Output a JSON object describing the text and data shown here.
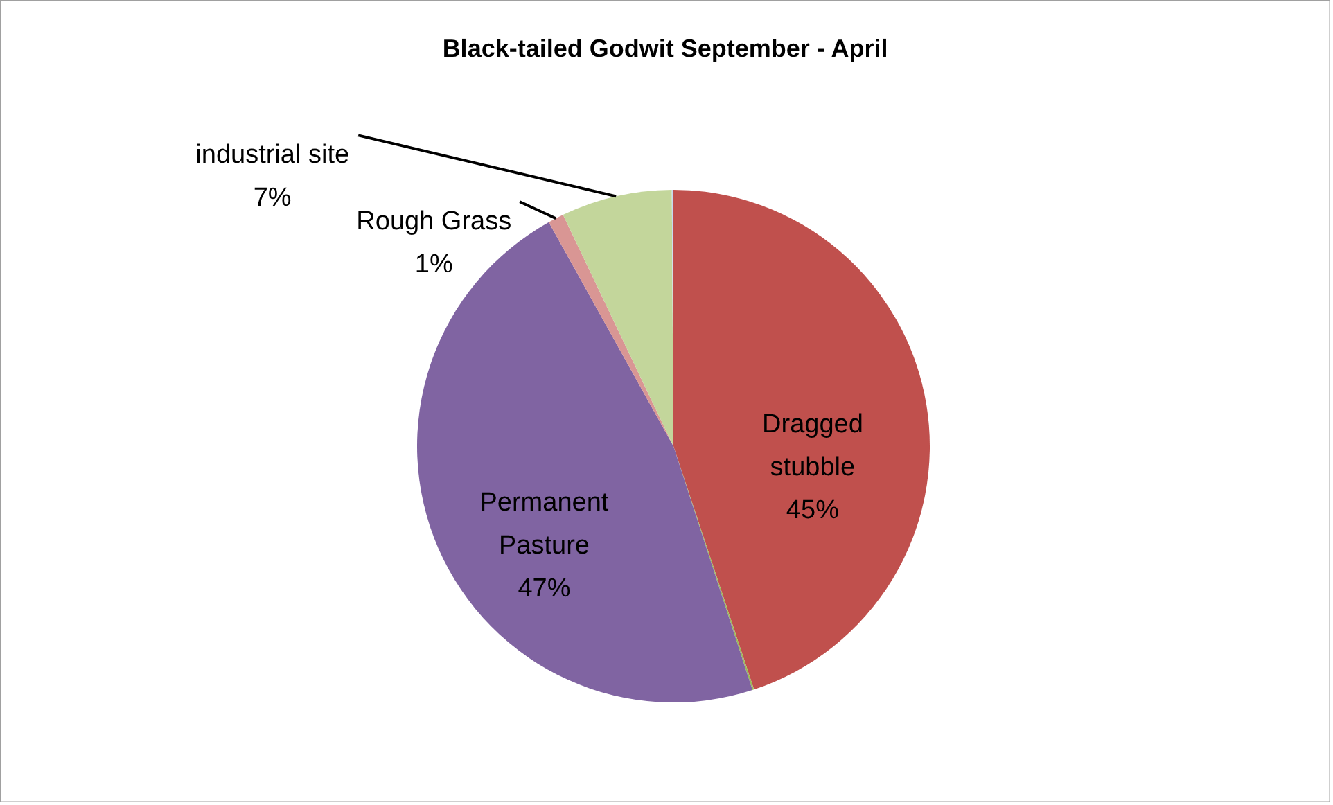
{
  "chart_data": {
    "type": "pie",
    "title": "Black-tailed Godwit September - April",
    "categories": [
      "Dragged stubble",
      null,
      "Permanent Pasture",
      "Rough Grass",
      "industrial site",
      null
    ],
    "values": [
      45,
      0.1,
      47,
      1,
      7,
      0.1
    ],
    "colors": [
      "#c0504d",
      "#9bbb59",
      "#8064a2",
      "#d99694",
      "#c3d69b",
      "#c6d9f1"
    ],
    "value_labels": [
      "45%",
      null,
      "47%",
      "1%",
      "7%",
      null
    ]
  }
}
